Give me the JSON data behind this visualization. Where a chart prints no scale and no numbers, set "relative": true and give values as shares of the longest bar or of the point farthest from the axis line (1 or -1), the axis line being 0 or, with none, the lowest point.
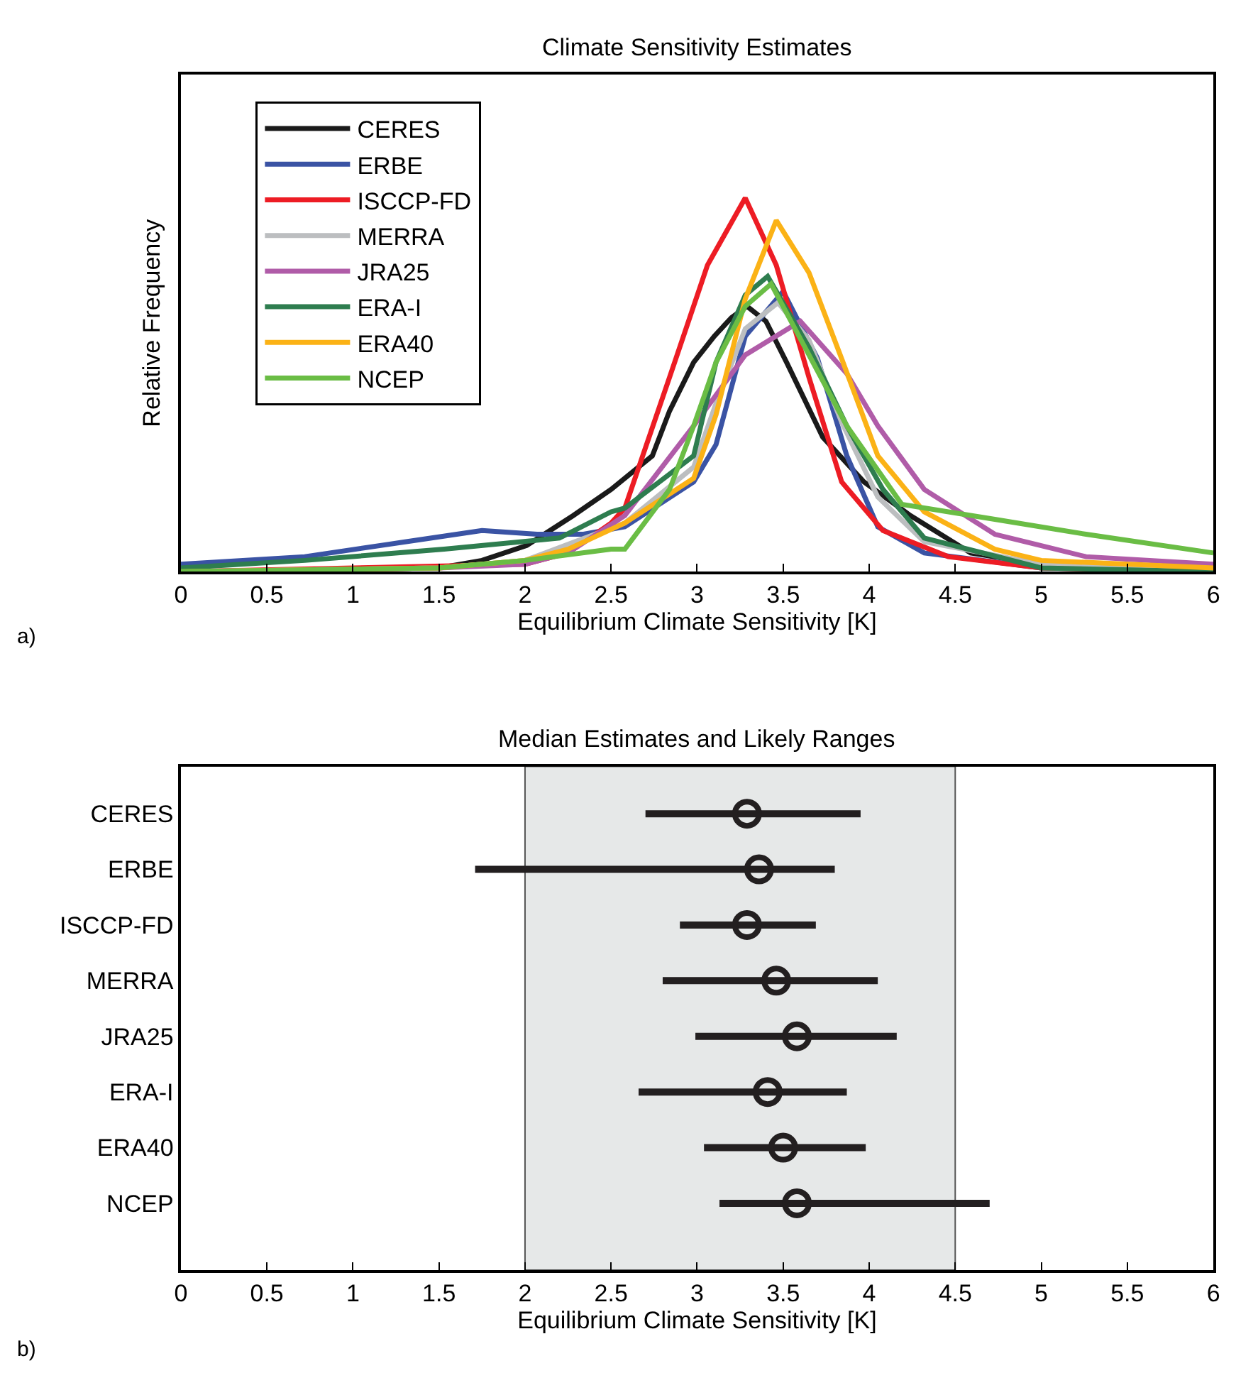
{
  "chart_data": [
    {
      "type": "line",
      "title": "Climate Sensitivity Estimates",
      "xlabel": "Equilibrium Climate Sensitivity [K]",
      "ylabel": "Relative Frequency",
      "relative": true,
      "xlim": [
        0,
        6
      ],
      "xticks": [
        0,
        0.5,
        1,
        1.5,
        2,
        2.5,
        3,
        3.5,
        4,
        4.5,
        5,
        5.5,
        6
      ],
      "legend": "top left",
      "grid": false,
      "marker": "none",
      "line_style": "solid",
      "annotations": [
        "a)"
      ],
      "series": [
        {
          "name": "CERES",
          "color": "#1a1a1a",
          "x": [
            0,
            1.5,
            1.75,
            2.01,
            2.28,
            2.5,
            2.74,
            2.84,
            2.98,
            3.1,
            3.2,
            3.29,
            3.4,
            3.52,
            3.73,
            3.97,
            4.24,
            4.59,
            5,
            6
          ],
          "values": [
            0,
            0.01,
            0.03,
            0.07,
            0.15,
            0.22,
            0.31,
            0.43,
            0.56,
            0.63,
            0.68,
            0.71,
            0.67,
            0.56,
            0.36,
            0.24,
            0.15,
            0.05,
            0.02,
            0
          ]
        },
        {
          "name": "ERBE",
          "color": "#3a53a4",
          "x": [
            0,
            0.72,
            1.31,
            1.75,
            2.07,
            2.34,
            2.58,
            2.98,
            3.11,
            3.28,
            3.5,
            3.7,
            3.87,
            4.05,
            4.32,
            5,
            6
          ],
          "values": [
            0.02,
            0.04,
            0.08,
            0.11,
            0.1,
            0.1,
            0.12,
            0.24,
            0.34,
            0.63,
            0.75,
            0.57,
            0.31,
            0.12,
            0.05,
            0.01,
            0.01
          ]
        },
        {
          "name": "ISCCP-FD",
          "color": "#ed1c24",
          "x": [
            0,
            2,
            2.25,
            2.5,
            2.58,
            2.84,
            3.06,
            3.28,
            3.46,
            3.65,
            3.84,
            4.08,
            4.46,
            5,
            6
          ],
          "values": [
            0,
            0.02,
            0.05,
            0.13,
            0.17,
            0.52,
            0.82,
            1,
            0.82,
            0.52,
            0.24,
            0.11,
            0.04,
            0.01,
            0
          ]
        },
        {
          "name": "MERRA",
          "color": "#bcbec0",
          "x": [
            0,
            1.5,
            2,
            2.58,
            2.98,
            3.11,
            3.28,
            3.47,
            3.65,
            3.84,
            4.05,
            4.32,
            5,
            6
          ],
          "values": [
            0,
            0.01,
            0.03,
            0.13,
            0.28,
            0.45,
            0.65,
            0.72,
            0.62,
            0.4,
            0.2,
            0.08,
            0.02,
            0
          ]
        },
        {
          "name": "JRA25",
          "color": "#b05ca8",
          "x": [
            0,
            1.5,
            2,
            2.25,
            2.58,
            2.98,
            3.28,
            3.6,
            3.87,
            4.05,
            4.32,
            4.73,
            5.26,
            6
          ],
          "values": [
            0,
            0.01,
            0.02,
            0.05,
            0.15,
            0.39,
            0.58,
            0.67,
            0.53,
            0.39,
            0.22,
            0.1,
            0.04,
            0.02
          ]
        },
        {
          "name": "ERA-I",
          "color": "#2e7d4f",
          "x": [
            0,
            0.72,
            1.53,
            2.2,
            2.5,
            2.58,
            2.98,
            3.11,
            3.28,
            3.41,
            3.65,
            3.87,
            4.08,
            4.32,
            5,
            6
          ],
          "values": [
            0.01,
            0.03,
            0.06,
            0.09,
            0.16,
            0.17,
            0.31,
            0.56,
            0.74,
            0.79,
            0.6,
            0.39,
            0.22,
            0.09,
            0.01,
            0
          ]
        },
        {
          "name": "ERA40",
          "color": "#fbb216",
          "x": [
            0,
            1.5,
            2,
            2.25,
            2.58,
            2.98,
            3.11,
            3.28,
            3.46,
            3.65,
            3.84,
            4.05,
            4.32,
            4.73,
            5,
            6
          ],
          "values": [
            0,
            0.01,
            0.03,
            0.06,
            0.13,
            0.25,
            0.42,
            0.73,
            0.94,
            0.8,
            0.57,
            0.31,
            0.16,
            0.06,
            0.03,
            0.01
          ]
        },
        {
          "name": "NCEP",
          "color": "#6abd45",
          "x": [
            0,
            1.5,
            2,
            2.5,
            2.58,
            2.84,
            2.98,
            3.11,
            3.28,
            3.43,
            3.65,
            3.87,
            4.19,
            4.73,
            5.26,
            6
          ],
          "values": [
            0,
            0.01,
            0.03,
            0.06,
            0.06,
            0.22,
            0.39,
            0.56,
            0.71,
            0.77,
            0.58,
            0.39,
            0.18,
            0.14,
            0.1,
            0.05
          ]
        }
      ]
    },
    {
      "type": "scatter",
      "title": "Median Estimates and Likely Ranges",
      "xlabel": "Equilibrium Climate Sensitivity [K]",
      "orientation": "horizontal",
      "xlim": [
        0,
        6
      ],
      "xticks": [
        0,
        0.5,
        1,
        1.5,
        2,
        2.5,
        3,
        3.5,
        4,
        4.5,
        5,
        5.5,
        6
      ],
      "grid": false,
      "legend": false,
      "marker": "circle",
      "annotations": [
        "b)"
      ],
      "categories": [
        "CERES",
        "ERBE",
        "ISCCP-FD",
        "MERRA",
        "JRA25",
        "ERA-I",
        "ERA40",
        "NCEP"
      ],
      "series": [
        {
          "color": "#231f20",
          "values": [
            3.29,
            3.36,
            3.29,
            3.46,
            3.58,
            3.41,
            3.5,
            3.58
          ],
          "errors": [
            [
              2.7,
              3.95
            ],
            [
              1.71,
              3.8
            ],
            [
              2.9,
              3.69
            ],
            [
              2.8,
              4.05
            ],
            [
              2.99,
              4.16
            ],
            [
              2.66,
              3.87
            ],
            [
              3.04,
              3.98
            ],
            [
              3.13,
              4.7
            ]
          ]
        }
      ],
      "bands": [
        {
          "axis": "x",
          "from": 2,
          "to": 4.5,
          "color": "#e6e8e8"
        }
      ]
    }
  ]
}
